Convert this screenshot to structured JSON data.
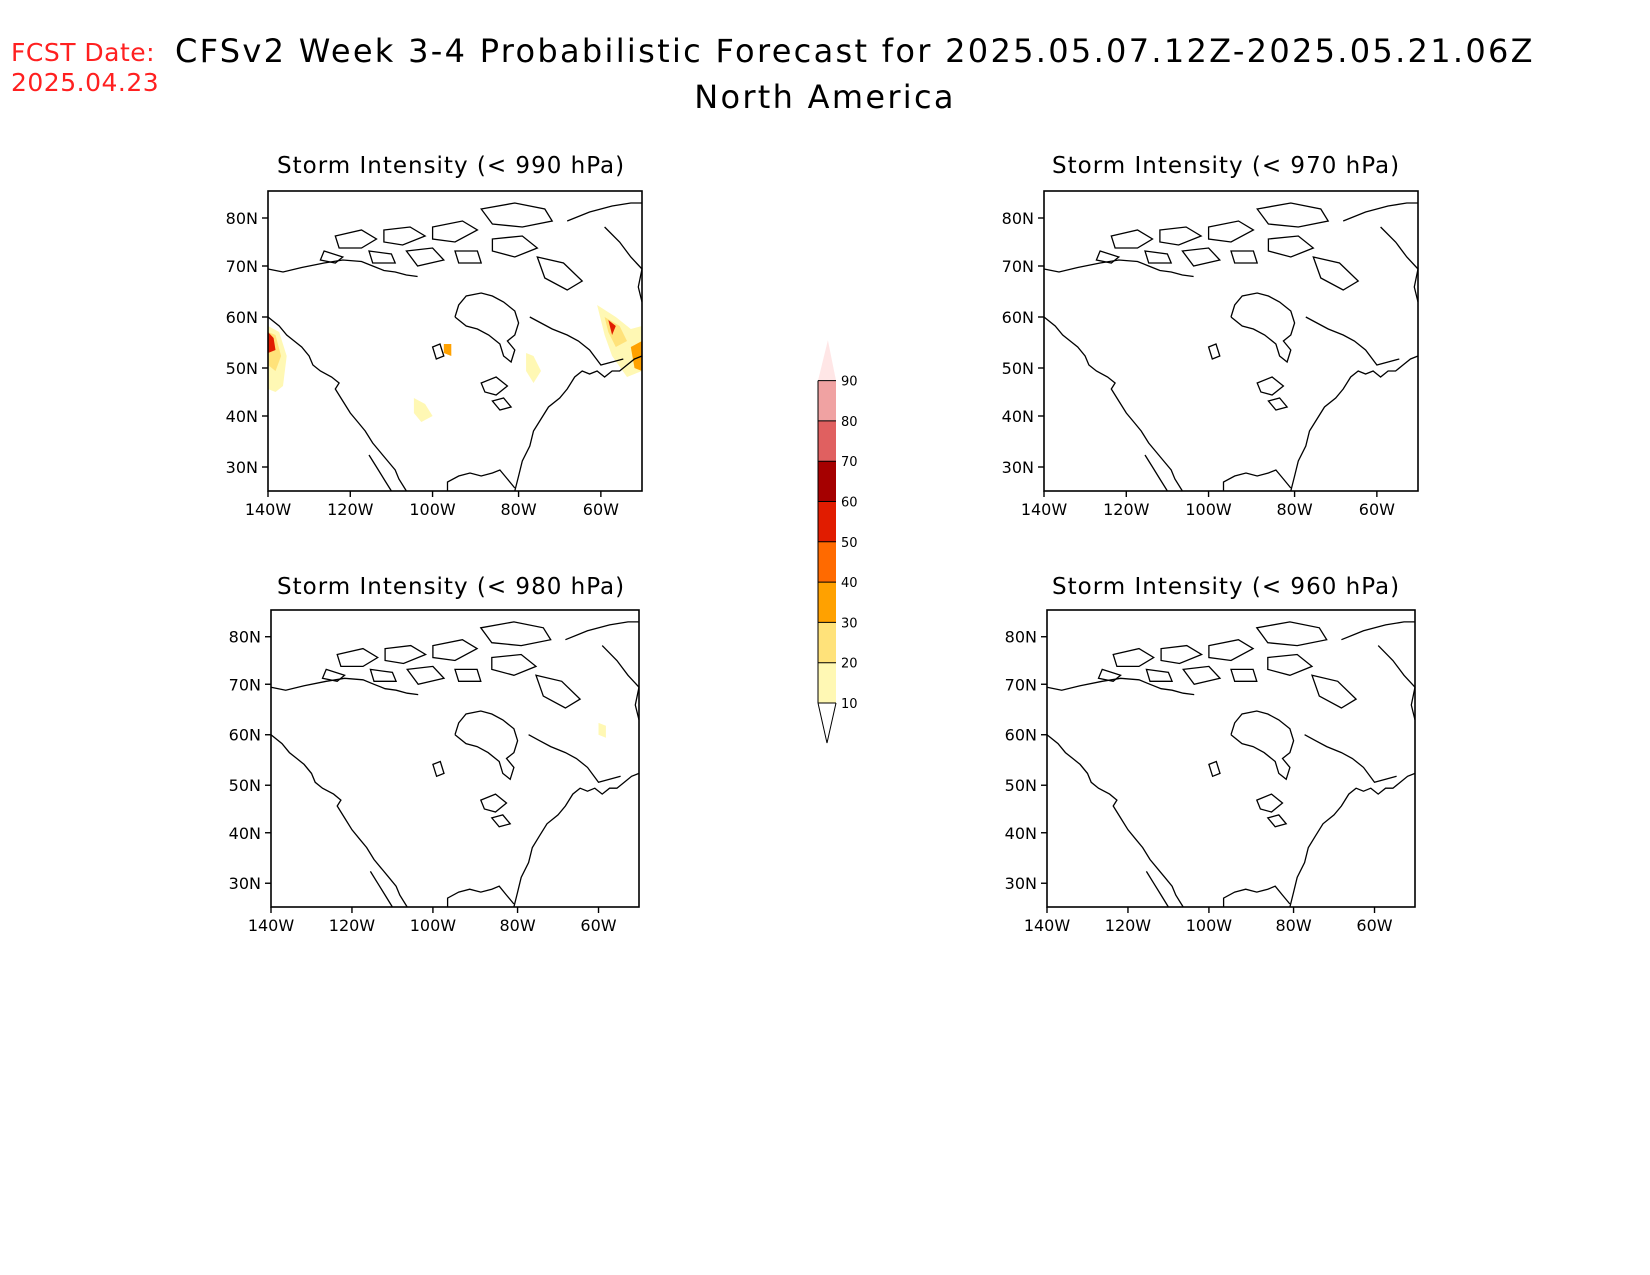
{
  "header": {
    "fcst_label": "FCST Date:",
    "fcst_date": "2025.04.23",
    "title": "CFSv2 Week 3-4 Probabilistic Forecast for 2025.05.07.12Z-2025.05.21.06Z",
    "region": "North America"
  },
  "panels": [
    {
      "id": "p990",
      "title": "Storm Intensity (< 990 hPa)"
    },
    {
      "id": "p970",
      "title": "Storm Intensity (< 970 hPa)"
    },
    {
      "id": "p980",
      "title": "Storm Intensity (< 980 hPa)"
    },
    {
      "id": "p960",
      "title": "Storm Intensity (< 960 hPa)"
    }
  ],
  "axes": {
    "lat_labels": [
      "80N",
      "70N",
      "60N",
      "50N",
      "40N",
      "30N"
    ],
    "lon_labels": [
      "140W",
      "120W",
      "100W",
      "80W",
      "60W"
    ]
  },
  "colorbar": {
    "labels": [
      "10",
      "20",
      "30",
      "40",
      "50",
      "60",
      "70",
      "80",
      "90"
    ],
    "colors": [
      "#fff8b4",
      "#ffe27a",
      "#ffa100",
      "#ff6a00",
      "#e11c00",
      "#a50000",
      "#e06060",
      "#f0a2a2",
      "#ffe6e6"
    ]
  }
}
